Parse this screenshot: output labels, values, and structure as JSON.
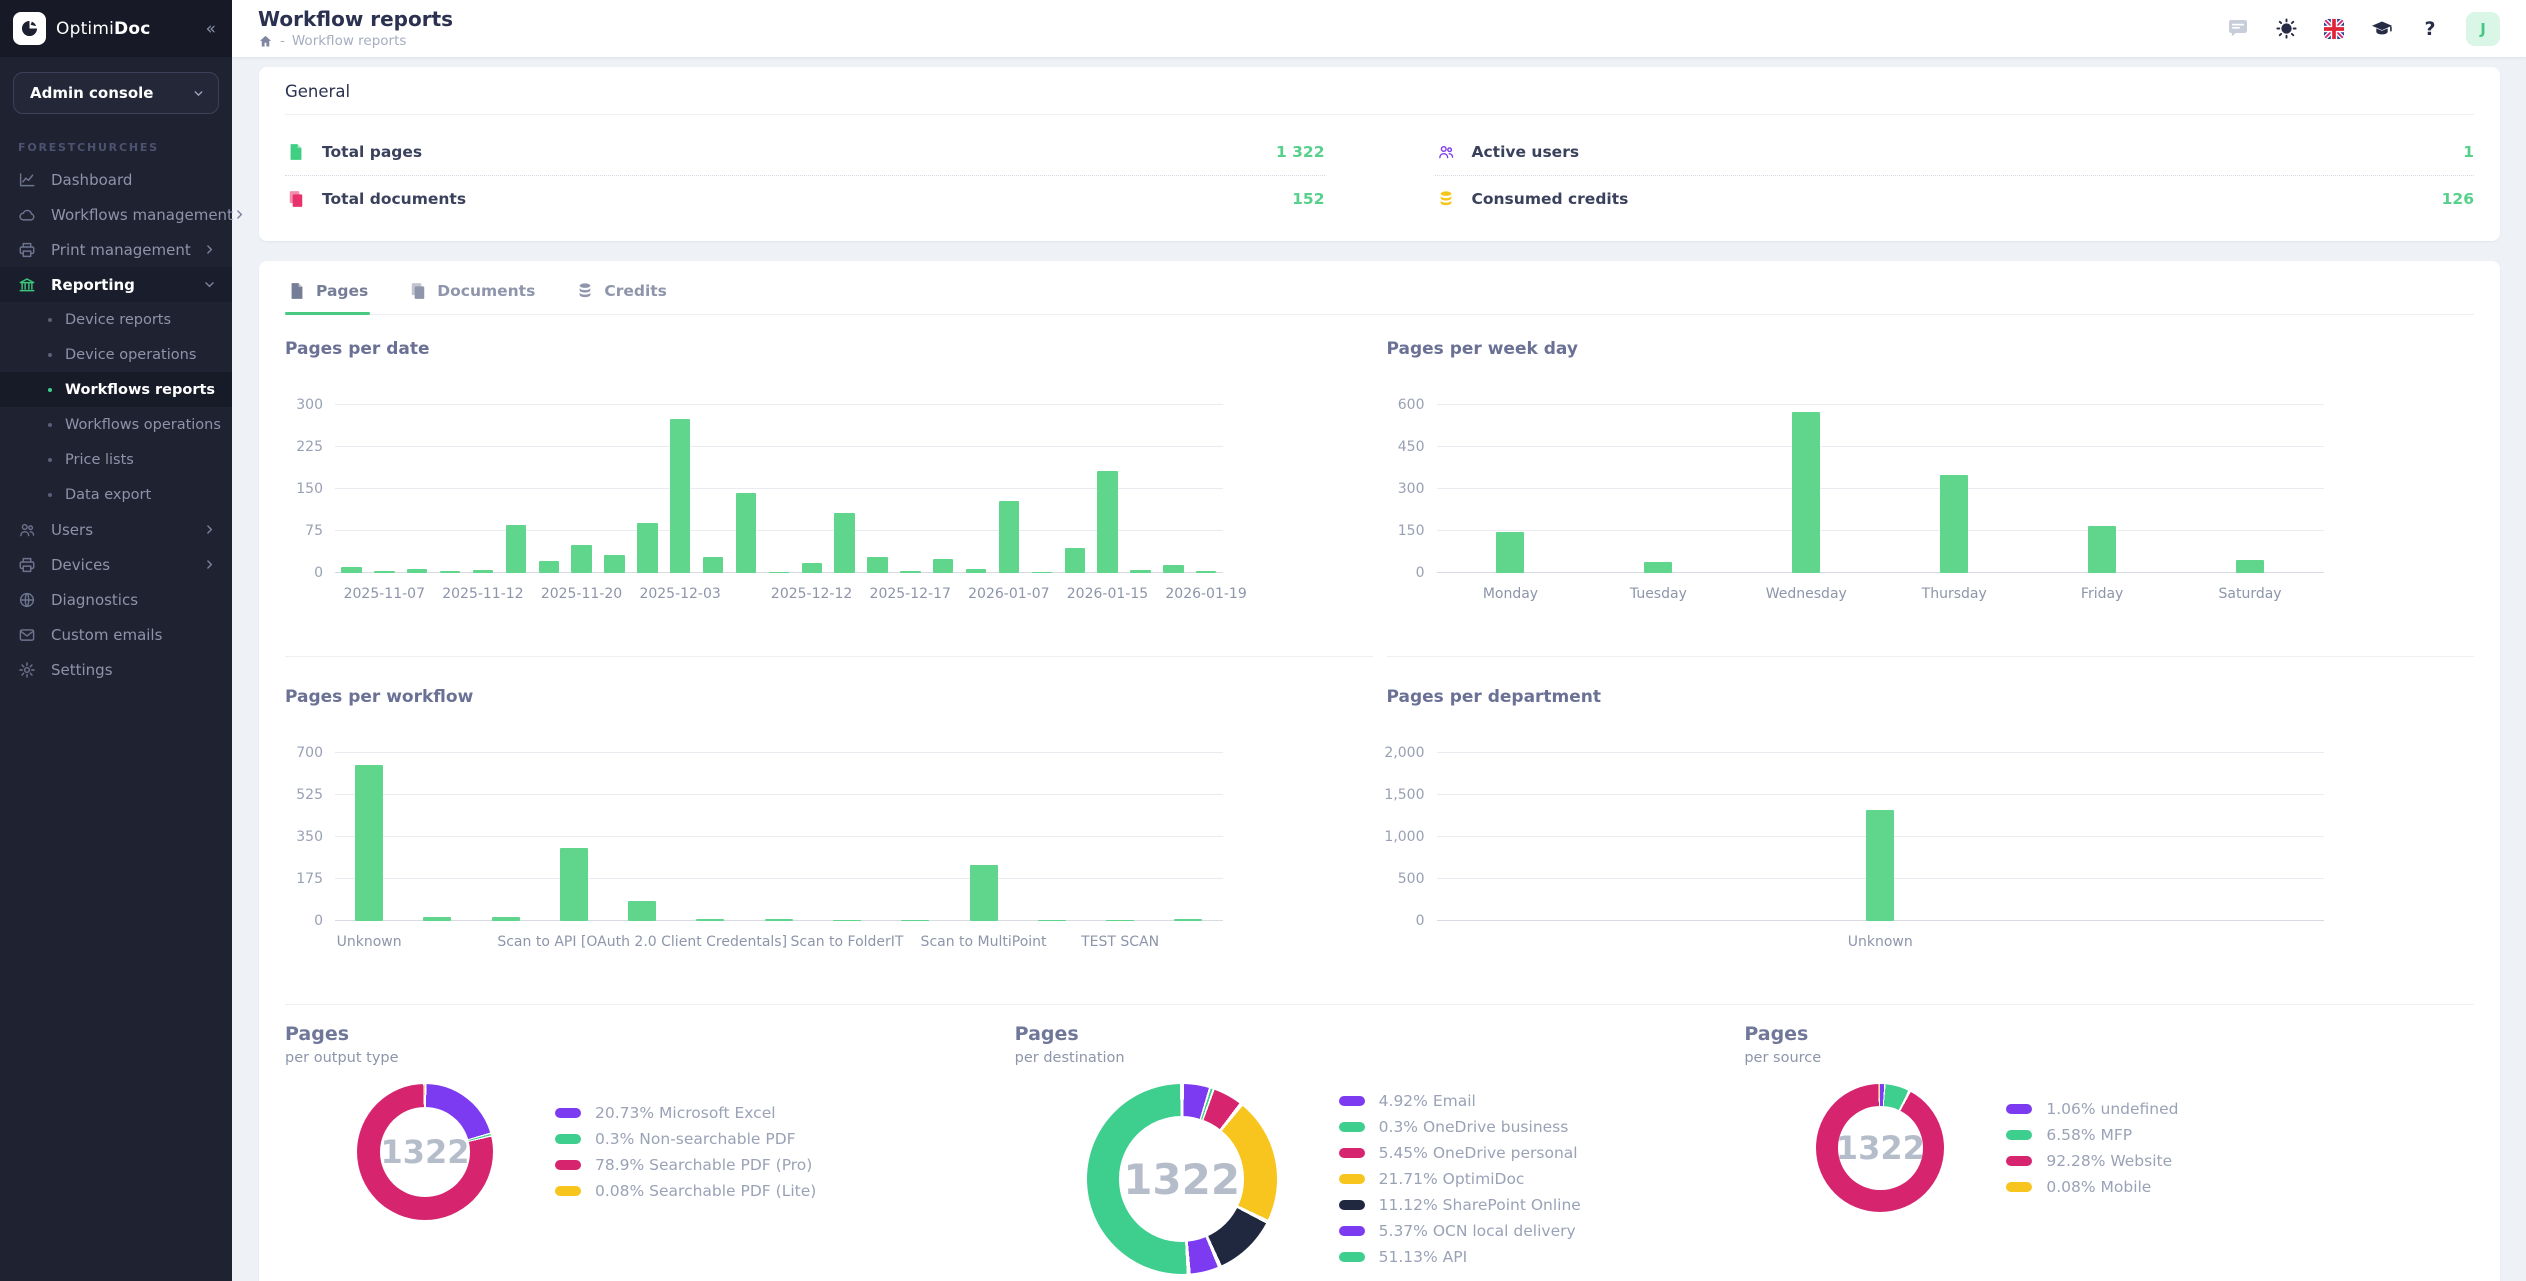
{
  "sidebar": {
    "logo_regular": "Optimi",
    "logo_bold": "Doc",
    "console_select": {
      "value": "Admin console"
    },
    "section_label": "FORESTCHURCHES",
    "items": [
      {
        "label": "Dashboard",
        "icon": "chart"
      },
      {
        "label": "Workflows management",
        "icon": "cloud",
        "chevron": "right"
      },
      {
        "label": "Print management",
        "icon": "printer",
        "chevron": "right"
      },
      {
        "label": "Reporting",
        "icon": "bank",
        "chevron": "down",
        "active": true
      },
      {
        "label": "Device reports",
        "sub": true
      },
      {
        "label": "Device operations",
        "sub": true
      },
      {
        "label": "Workflows reports",
        "sub": true,
        "active": true
      },
      {
        "label": "Workflows operations",
        "sub": true
      },
      {
        "label": "Price lists",
        "sub": true
      },
      {
        "label": "Data export",
        "sub": true
      },
      {
        "label": "Users",
        "icon": "users",
        "chevron": "right"
      },
      {
        "label": "Devices",
        "icon": "printer",
        "chevron": "right"
      },
      {
        "label": "Diagnostics",
        "icon": "globe"
      },
      {
        "label": "Custom emails",
        "icon": "mail"
      },
      {
        "label": "Settings",
        "icon": "gear"
      }
    ]
  },
  "header": {
    "title": "Workflow reports",
    "breadcrumb_separator": "-",
    "breadcrumb": "Workflow reports",
    "avatar": "J",
    "icon_names": [
      "messages-icon",
      "theme-sun-icon",
      "language-uk-flag-icon",
      "tutorials-icon",
      "help-icon"
    ]
  },
  "general": {
    "title": "General",
    "columns": [
      [
        {
          "icon": "file",
          "icon_color": "#3fcf83",
          "label": "Total pages",
          "value": "1 322"
        },
        {
          "icon": "copy",
          "icon_color": "#e8326e",
          "label": "Total documents",
          "value": "152"
        }
      ],
      [
        {
          "icon": "users",
          "icon_color": "#7c3bf0",
          "label": "Active users",
          "value": "1"
        },
        {
          "icon": "coins",
          "icon_color": "#f5c51a",
          "label": "Consumed credits",
          "value": "126"
        }
      ]
    ]
  },
  "tabs": [
    {
      "label": "Pages",
      "icon": "file",
      "active": true
    },
    {
      "label": "Documents",
      "icon": "copy",
      "active": false
    },
    {
      "label": "Credits",
      "icon": "coins",
      "active": false
    }
  ],
  "colors": {
    "accent_green": "#3ecf8e",
    "bar_green": "#5fd68c",
    "pink": "#d6256e",
    "purple": "#7c3bf0",
    "yellow": "#f7c51e",
    "navy": "#202840",
    "value_green": "#56d08a"
  },
  "chart_data": [
    {
      "type": "bar",
      "title": "Pages per date",
      "values": [
        10,
        4,
        8,
        4,
        5,
        85,
        22,
        50,
        33,
        90,
        275,
        28,
        143,
        2,
        17,
        108,
        29,
        3,
        25,
        7,
        128,
        2,
        44,
        183,
        6,
        14,
        4
      ],
      "tick_labels": [
        "2025-11-07",
        "2025-11-12",
        "2025-11-20",
        "2025-12-03",
        "2025-12-12",
        "2025-12-17",
        "2026-01-07",
        "2026-01-15",
        "2026-01-19"
      ],
      "tick_indices": [
        1,
        4,
        7,
        10,
        14,
        17,
        20,
        23,
        26
      ],
      "yticks": [
        0,
        75,
        150,
        225,
        300
      ],
      "ylim": [
        0,
        300
      ],
      "grid": true,
      "bar_color": "#5fd68c"
    },
    {
      "type": "bar",
      "title": "Pages per week day",
      "categories": [
        "Monday",
        "Tuesday",
        "Wednesday",
        "Thursday",
        "Friday",
        "Saturday"
      ],
      "values": [
        145,
        38,
        575,
        350,
        168,
        48
      ],
      "yticks": [
        0,
        150,
        300,
        450,
        600
      ],
      "ylim": [
        0,
        600
      ],
      "grid": true,
      "bar_color": "#5fd68c"
    },
    {
      "type": "bar",
      "title": "Pages per workflow",
      "values": [
        650,
        15,
        15,
        305,
        85,
        10,
        8,
        6,
        6,
        235,
        2,
        2,
        8
      ],
      "tick_labels": [
        "Unknown",
        "Scan to API [OAuth 2.0 Client Credentals]",
        "Scan to FolderIT",
        "Scan to MultiPoint",
        "TEST SCAN"
      ],
      "tick_indices": [
        0,
        4,
        7,
        9,
        11
      ],
      "yticks": [
        0,
        175,
        350,
        525,
        700
      ],
      "ylim": [
        0,
        700
      ],
      "grid": true,
      "bar_color": "#5fd68c"
    },
    {
      "type": "bar",
      "title": "Pages per department",
      "values": [
        1322
      ],
      "tick_labels": [
        "Unknown"
      ],
      "tick_indices": [
        0
      ],
      "yticks": [
        0,
        500,
        1000,
        1500,
        2000
      ],
      "ytick_labels": [
        "0",
        "500",
        "1,000",
        "1,500",
        "2,000"
      ],
      "ylim": [
        0,
        2000
      ],
      "grid": true,
      "bar_color": "#5fd68c"
    },
    {
      "type": "donut",
      "title": "Pages",
      "subtitle": "per output type",
      "center": "1322",
      "segments": [
        {
          "pct": 20.73,
          "label": "20.73% Microsoft Excel",
          "color": "#7c3bf0"
        },
        {
          "pct": 0.3,
          "label": "0.3% Non-searchable PDF",
          "color": "#3ecf8e"
        },
        {
          "pct": 78.9,
          "label": "78.9% Searchable PDF (Pro)",
          "color": "#d6256e"
        },
        {
          "pct": 0.08,
          "label": "0.08% Searchable PDF (Lite)",
          "color": "#f7c51e"
        }
      ]
    },
    {
      "type": "donut",
      "title": "Pages",
      "subtitle": "per destination",
      "center": "1322",
      "segments": [
        {
          "pct": 4.92,
          "label": "4.92% Email",
          "color": "#7c3bf0"
        },
        {
          "pct": 0.3,
          "label": "0.3% OneDrive business",
          "color": "#3ecf8e"
        },
        {
          "pct": 5.45,
          "label": "5.45% OneDrive personal",
          "color": "#d6256e"
        },
        {
          "pct": 21.71,
          "label": "21.71% OptimiDoc",
          "color": "#f7c51e"
        },
        {
          "pct": 11.12,
          "label": "11.12% SharePoint Online",
          "color": "#202840"
        },
        {
          "pct": 5.37,
          "label": "5.37% OCN local delivery",
          "color": "#7c3bf0"
        },
        {
          "pct": 51.13,
          "label": "51.13% API",
          "color": "#3ecf8e"
        }
      ]
    },
    {
      "type": "donut",
      "title": "Pages",
      "subtitle": "per source",
      "center": "1322",
      "segments": [
        {
          "pct": 1.06,
          "label": "1.06% undefined",
          "color": "#7c3bf0"
        },
        {
          "pct": 6.58,
          "label": "6.58% MFP",
          "color": "#3ecf8e"
        },
        {
          "pct": 92.28,
          "label": "92.28% Website",
          "color": "#d6256e"
        },
        {
          "pct": 0.08,
          "label": "0.08% Mobile",
          "color": "#f7c51e"
        }
      ]
    }
  ]
}
